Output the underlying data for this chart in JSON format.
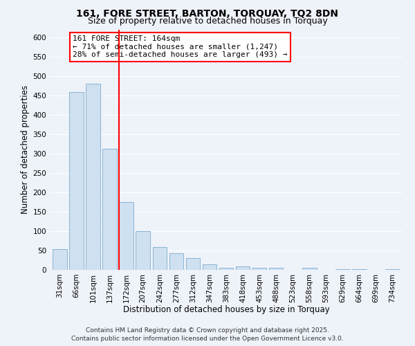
{
  "title": "161, FORE STREET, BARTON, TORQUAY, TQ2 8DN",
  "subtitle": "Size of property relative to detached houses in Torquay",
  "xlabel": "Distribution of detached houses by size in Torquay",
  "ylabel": "Number of detached properties",
  "bar_labels": [
    "31sqm",
    "66sqm",
    "101sqm",
    "137sqm",
    "172sqm",
    "207sqm",
    "242sqm",
    "277sqm",
    "312sqm",
    "347sqm",
    "383sqm",
    "418sqm",
    "453sqm",
    "488sqm",
    "523sqm",
    "558sqm",
    "593sqm",
    "629sqm",
    "664sqm",
    "699sqm",
    "734sqm"
  ],
  "bar_values": [
    54,
    458,
    480,
    313,
    175,
    100,
    58,
    42,
    31,
    15,
    6,
    9,
    5,
    5,
    0,
    5,
    0,
    1,
    1,
    0,
    1
  ],
  "bar_color": "#cfe0f0",
  "bar_edge_color": "#8ab4d4",
  "ylim": [
    0,
    620
  ],
  "yticks": [
    0,
    50,
    100,
    150,
    200,
    250,
    300,
    350,
    400,
    450,
    500,
    550,
    600
  ],
  "property_line_index": 4,
  "property_line_label": "161 FORE STREET: 164sqm",
  "annotation_line1": "← 71% of detached houses are smaller (1,247)",
  "annotation_line2": "28% of semi-detached houses are larger (493) →",
  "footer_line1": "Contains HM Land Registry data © Crown copyright and database right 2025.",
  "footer_line2": "Contains public sector information licensed under the Open Government Licence v3.0.",
  "background_color": "#eef2f9",
  "grid_color": "#ffffff",
  "title_fontsize": 10,
  "subtitle_fontsize": 9,
  "axis_label_fontsize": 8.5,
  "tick_fontsize": 7.5,
  "footer_fontsize": 6.5,
  "annot_fontsize": 8
}
